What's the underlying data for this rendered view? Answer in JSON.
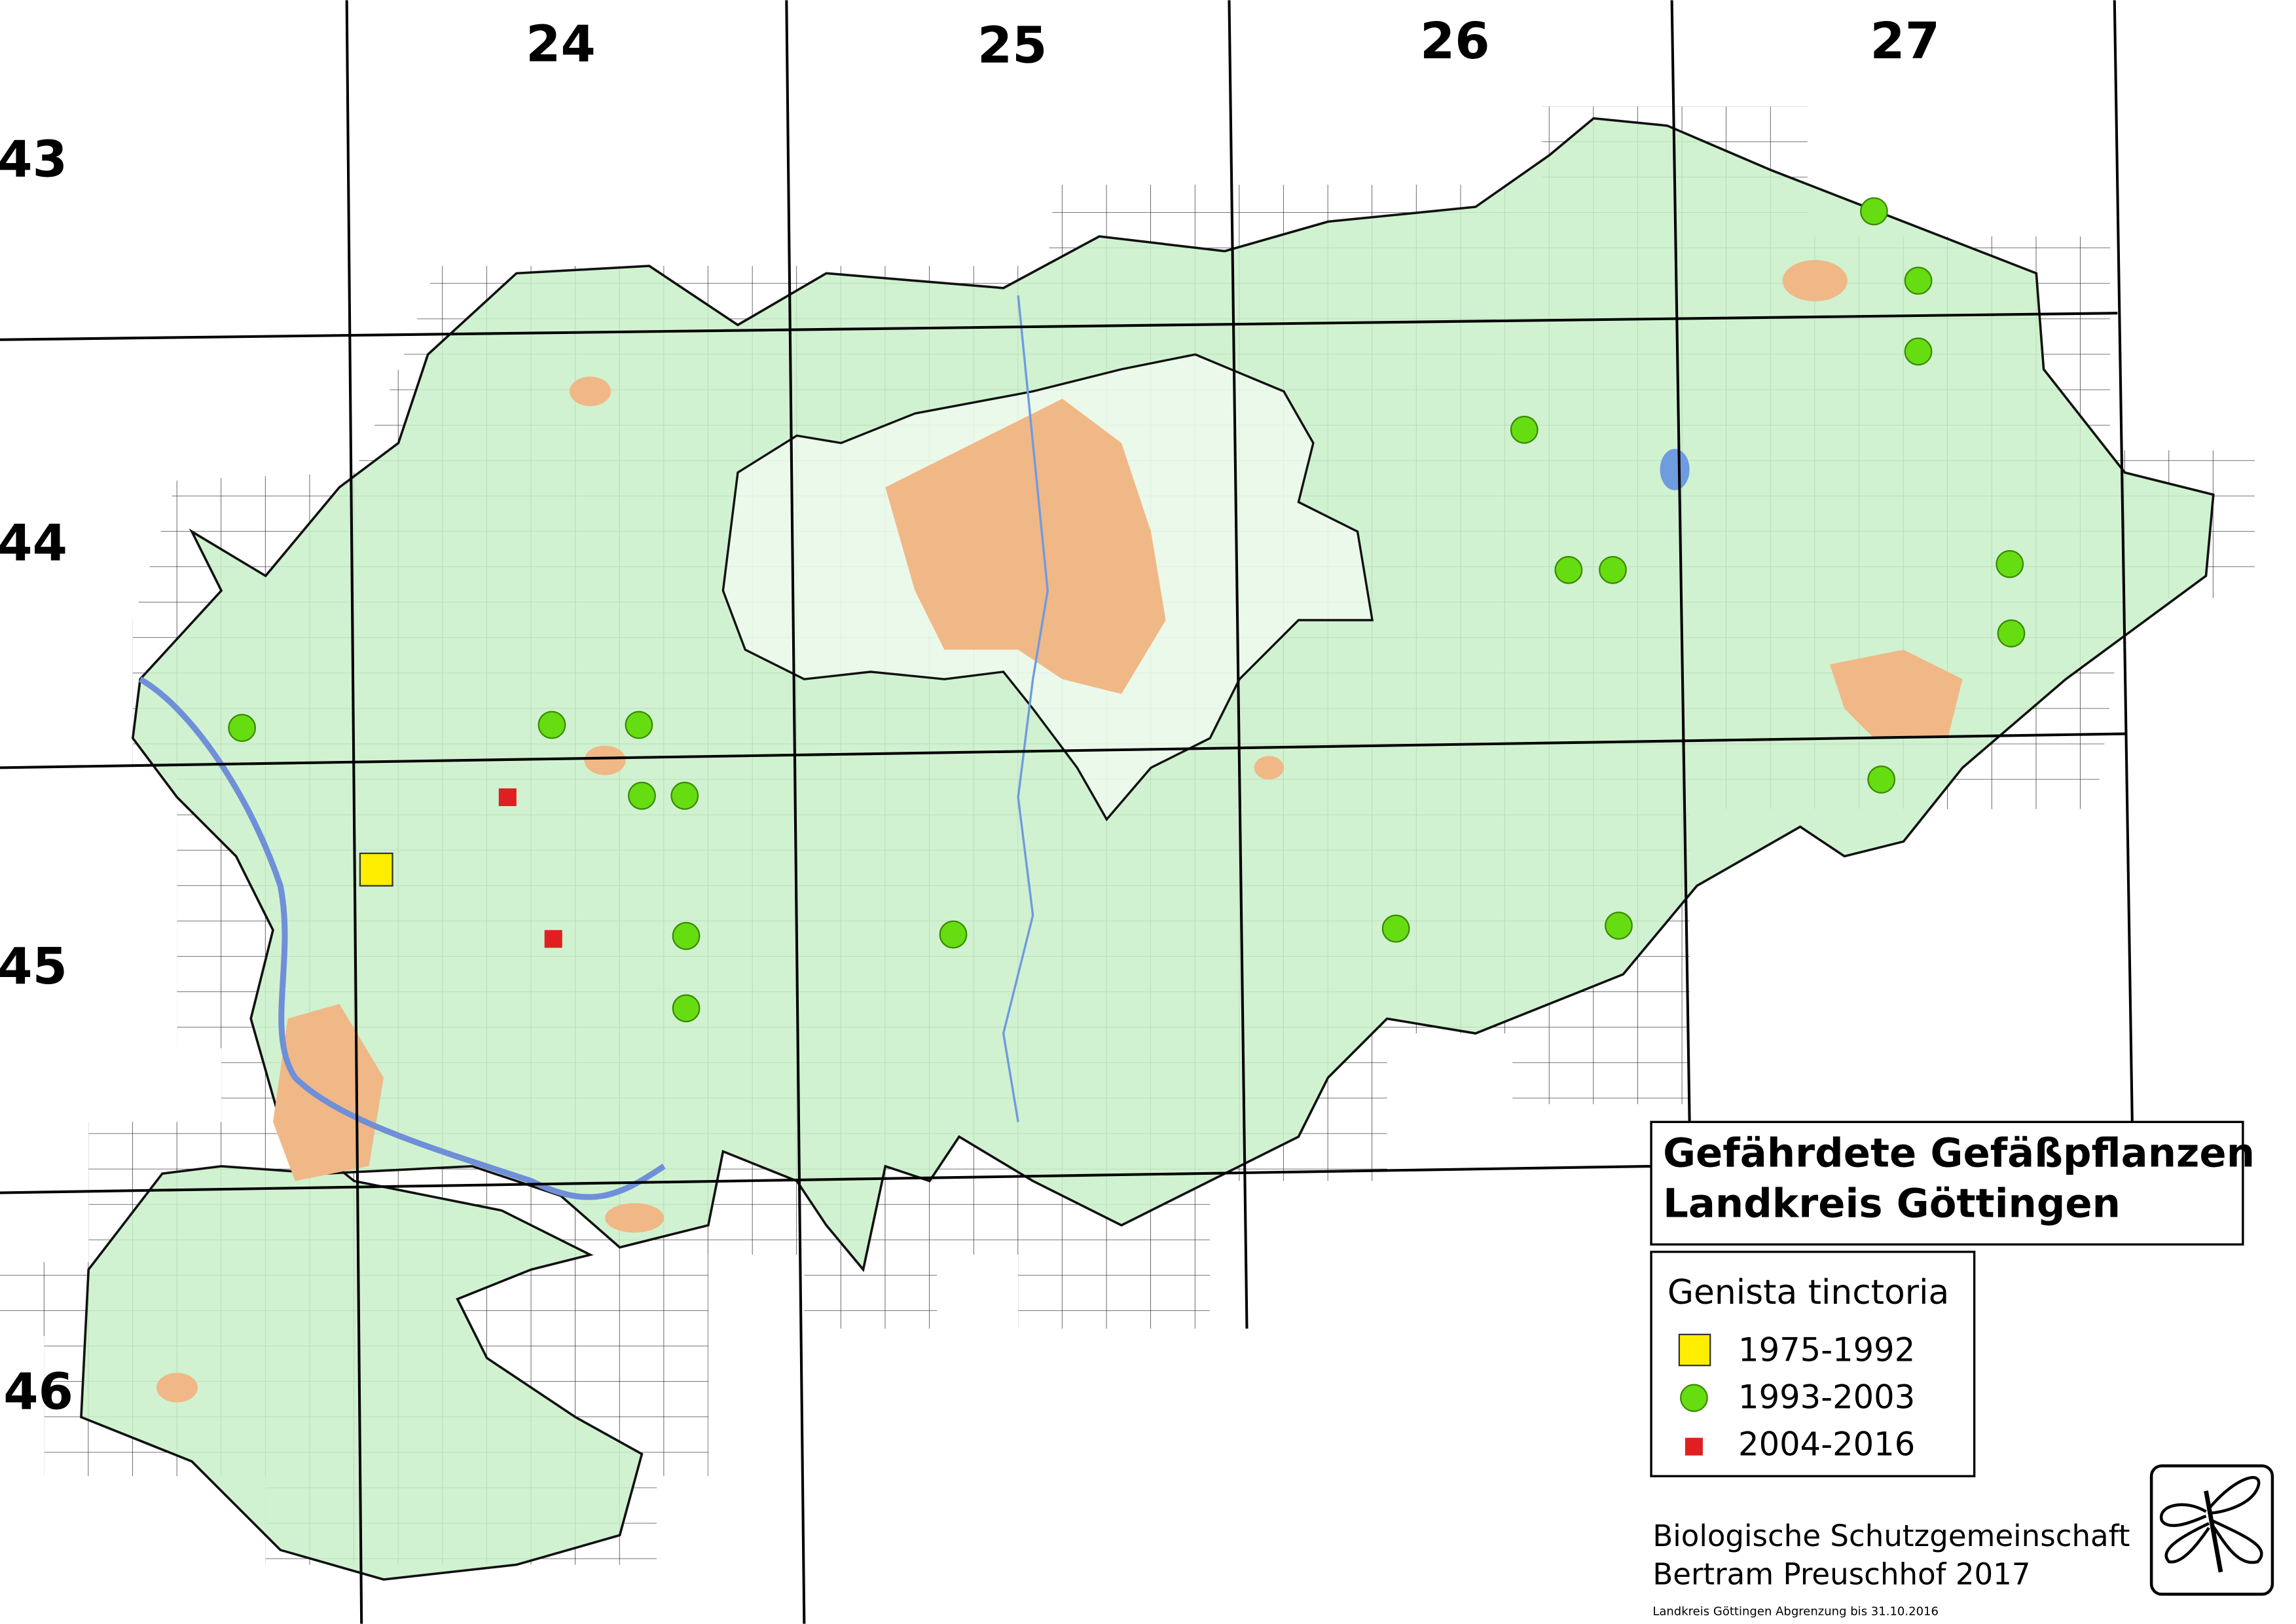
{
  "header": {
    "column_labels": [
      "24",
      "25",
      "26",
      "27"
    ],
    "row_labels": [
      "43",
      "44",
      "45",
      "46"
    ]
  },
  "legend": {
    "title_lines": [
      "Gefährdete Gefäßpflanzen",
      "Landkreis Göttingen"
    ],
    "species": "Genista tinctoria",
    "entries": [
      "1975-1992",
      "1993-2003",
      "2004-2016"
    ]
  },
  "credits": {
    "lines": [
      "Biologische Schutzgemeinschaft",
      "Bertram Preuschhof 2017"
    ],
    "note": "Landkreis Göttingen Abgrenzung bis 31.10.2016"
  }
}
